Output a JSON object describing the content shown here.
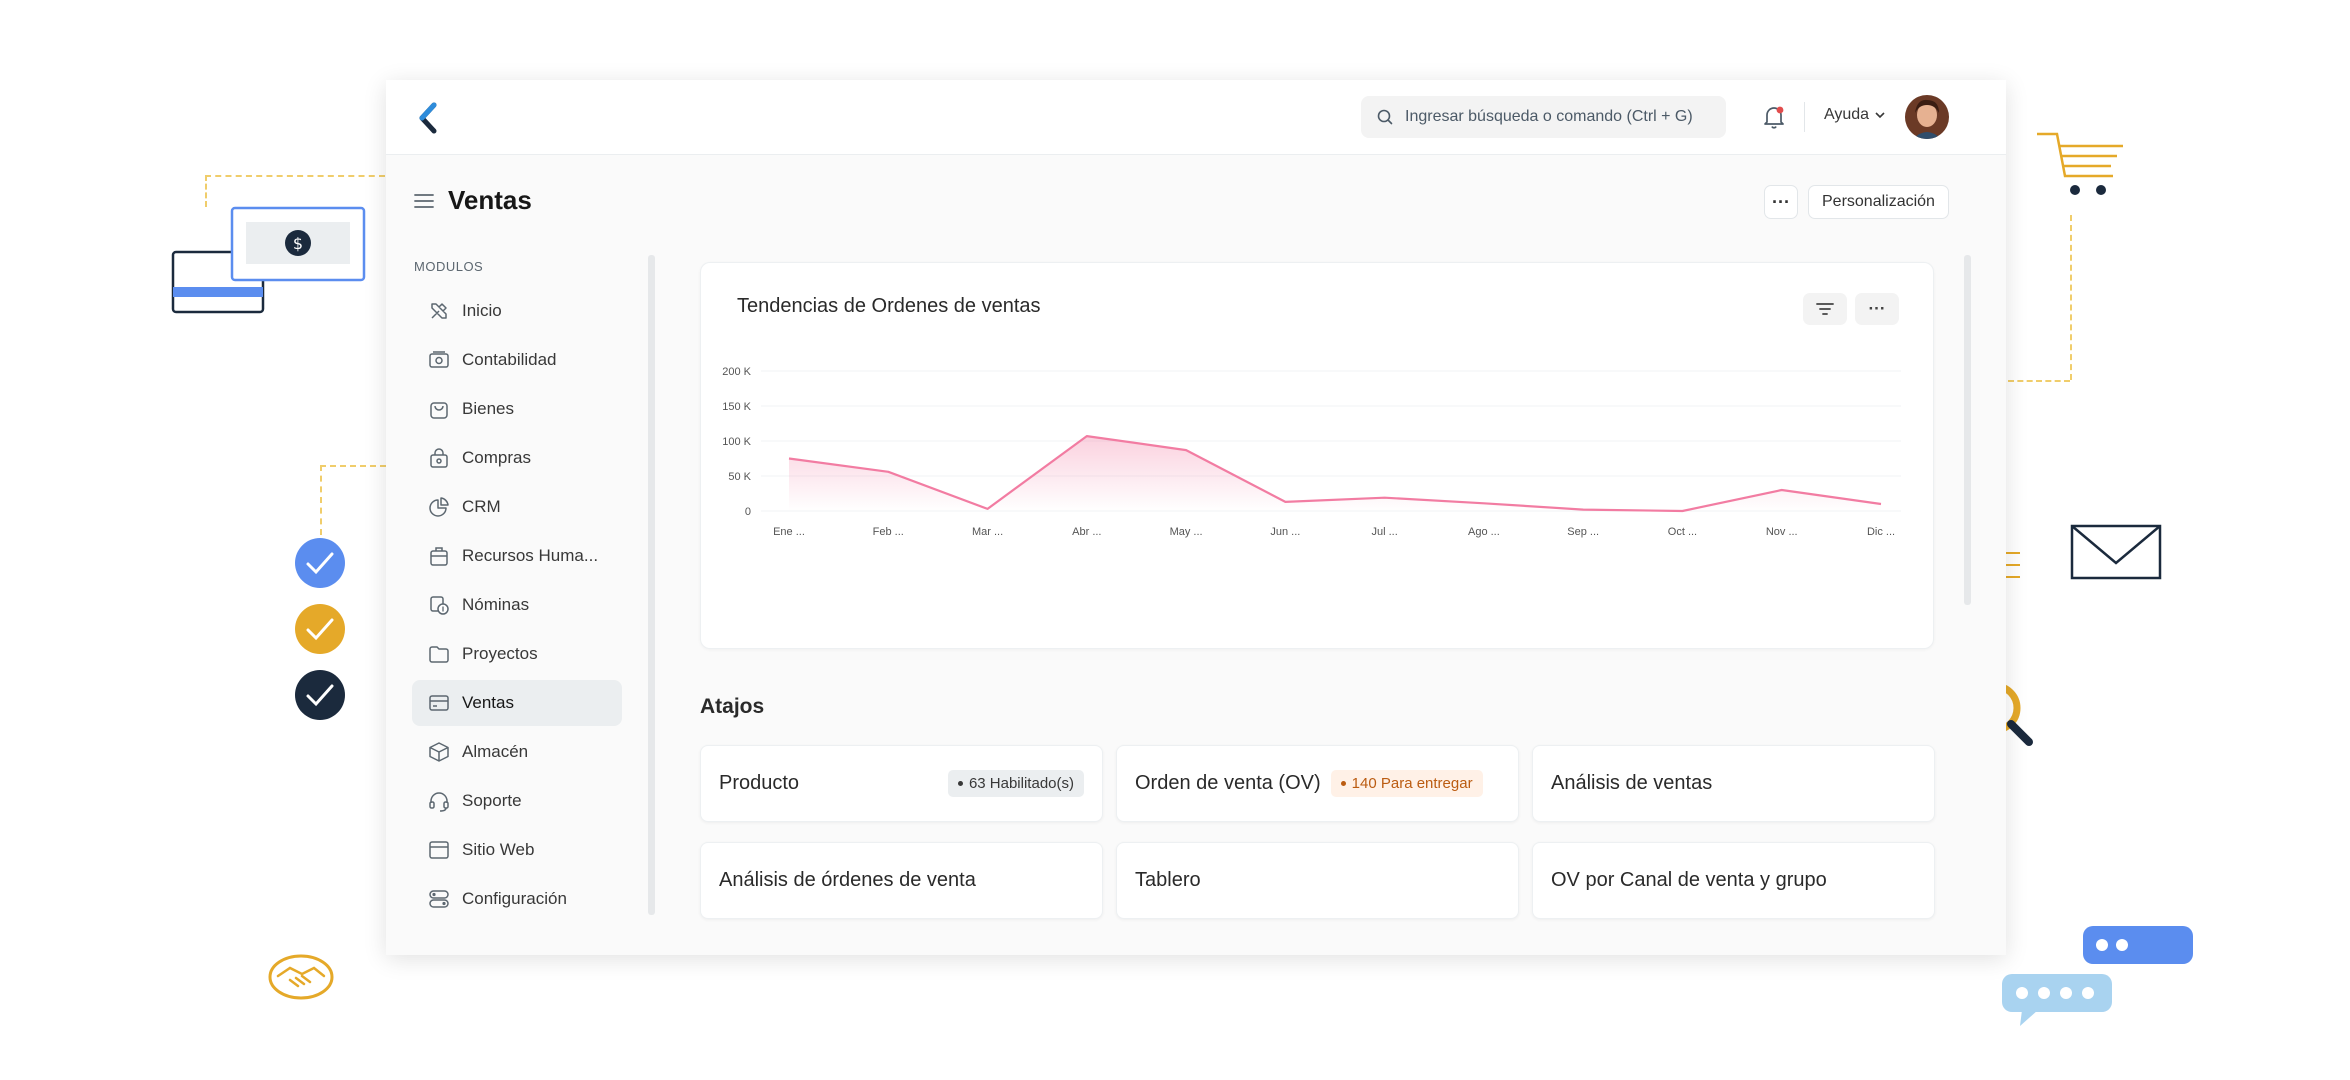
{
  "topbar": {
    "search_placeholder": "Ingresar búsqueda o comando (Ctrl + G)",
    "help_label": "Ayuda"
  },
  "page": {
    "title": "Ventas",
    "more_label": "···",
    "customize_label": "Personalización"
  },
  "sidebar": {
    "header": "MODULOS",
    "items": [
      {
        "label": "Inicio",
        "icon": "tools-icon"
      },
      {
        "label": "Contabilidad",
        "icon": "money-icon"
      },
      {
        "label": "Bienes",
        "icon": "bag-icon"
      },
      {
        "label": "Compras",
        "icon": "purchase-icon"
      },
      {
        "label": "CRM",
        "icon": "pie-chart-icon"
      },
      {
        "label": "Recursos Huma...",
        "icon": "people-icon"
      },
      {
        "label": "Nóminas",
        "icon": "payroll-icon"
      },
      {
        "label": "Proyectos",
        "icon": "folder-icon"
      },
      {
        "label": "Ventas",
        "icon": "card-icon",
        "active": true
      },
      {
        "label": "Almacén",
        "icon": "box-icon"
      },
      {
        "label": "Soporte",
        "icon": "headset-icon"
      },
      {
        "label": "Sitio Web",
        "icon": "browser-icon"
      },
      {
        "label": "Configuración",
        "icon": "settings-icon"
      }
    ]
  },
  "chart": {
    "more_label": "···"
  },
  "chart_data": {
    "type": "area",
    "title": "Tendencias de Ordenes de ventas",
    "categories": [
      "Ene ...",
      "Feb ...",
      "Mar ...",
      "Abr ...",
      "May ...",
      "Jun ...",
      "Jul ...",
      "Ago ...",
      "Sep ...",
      "Oct ...",
      "Nov ...",
      "Dic ..."
    ],
    "values": [
      75000,
      56000,
      3000,
      107000,
      87000,
      13000,
      19000,
      11000,
      2000,
      0,
      30000,
      10000
    ],
    "y_ticks": [
      "200 K",
      "150 K",
      "100 K",
      "50 K",
      "0"
    ],
    "ylim": [
      0,
      200000
    ],
    "grid": true,
    "color": "#f27ca2"
  },
  "shortcuts": {
    "title": "Atajos",
    "items": [
      {
        "label": "Producto",
        "badge": "63 Habilitado(s)",
        "badge_color": "gray"
      },
      {
        "label": "Orden de venta (OV)",
        "badge": "140 Para entregar",
        "badge_color": "orange"
      },
      {
        "label": "Análisis de ventas"
      },
      {
        "label": "Análisis de órdenes de venta"
      },
      {
        "label": "Tablero"
      },
      {
        "label": "OV por Canal de venta y grupo"
      }
    ]
  },
  "colors": {
    "accent_blue": "#5b8def",
    "accent_yellow": "#e5a929",
    "dark_navy": "#1b2a3d",
    "chart_line": "#f27ca2"
  }
}
